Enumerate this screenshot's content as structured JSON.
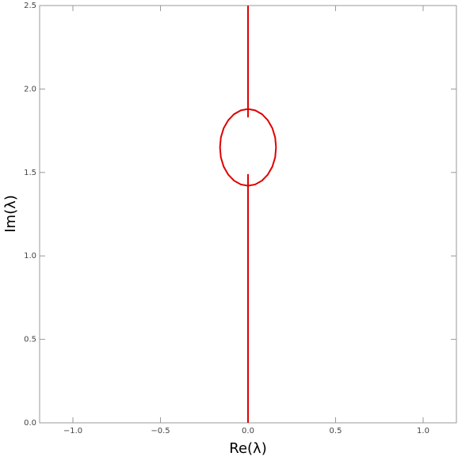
{
  "chart_data": {
    "type": "line",
    "xlabel": "Re(λ)",
    "ylabel": "Im(λ)",
    "xlim": [
      -1.19,
      1.19
    ],
    "ylim": [
      0,
      2.5
    ],
    "xticks": [
      {
        "value": -1,
        "label": "−1.0"
      },
      {
        "value": -0.5,
        "label": "−0.5"
      },
      {
        "value": 0,
        "label": "0.0"
      },
      {
        "value": 0.5,
        "label": "0.5"
      },
      {
        "value": 1,
        "label": "1.0"
      }
    ],
    "yticks": [
      {
        "value": 0,
        "label": "0.0"
      },
      {
        "value": 0.5,
        "label": "0.5"
      },
      {
        "value": 1,
        "label": "1.0"
      },
      {
        "value": 1.5,
        "label": "1.5"
      },
      {
        "value": 2,
        "label": "2.0"
      },
      {
        "value": 2.5,
        "label": "2.5"
      }
    ],
    "series": [
      {
        "color": "#e00000",
        "x": [
          0,
          0,
          0,
          0,
          0
        ],
        "values": [
          0,
          1.49,
          null,
          1.83,
          2.5
        ]
      },
      {
        "color": "#e00000",
        "x": [
          0.16,
          0.155,
          0.139,
          0.113,
          0.08,
          0.041,
          0,
          -0.041,
          -0.08,
          -0.113,
          -0.139,
          -0.155,
          -0.16,
          -0.155,
          -0.139,
          -0.113,
          -0.08,
          -0.041,
          0,
          0.041,
          0.08,
          0.113,
          0.139,
          0.155,
          0.16
        ],
        "values": [
          1.65,
          1.71,
          1.765,
          1.813,
          1.849,
          1.872,
          1.88,
          1.872,
          1.849,
          1.813,
          1.765,
          1.71,
          1.65,
          1.59,
          1.535,
          1.487,
          1.451,
          1.428,
          1.42,
          1.428,
          1.451,
          1.487,
          1.535,
          1.59,
          1.65
        ]
      }
    ]
  }
}
